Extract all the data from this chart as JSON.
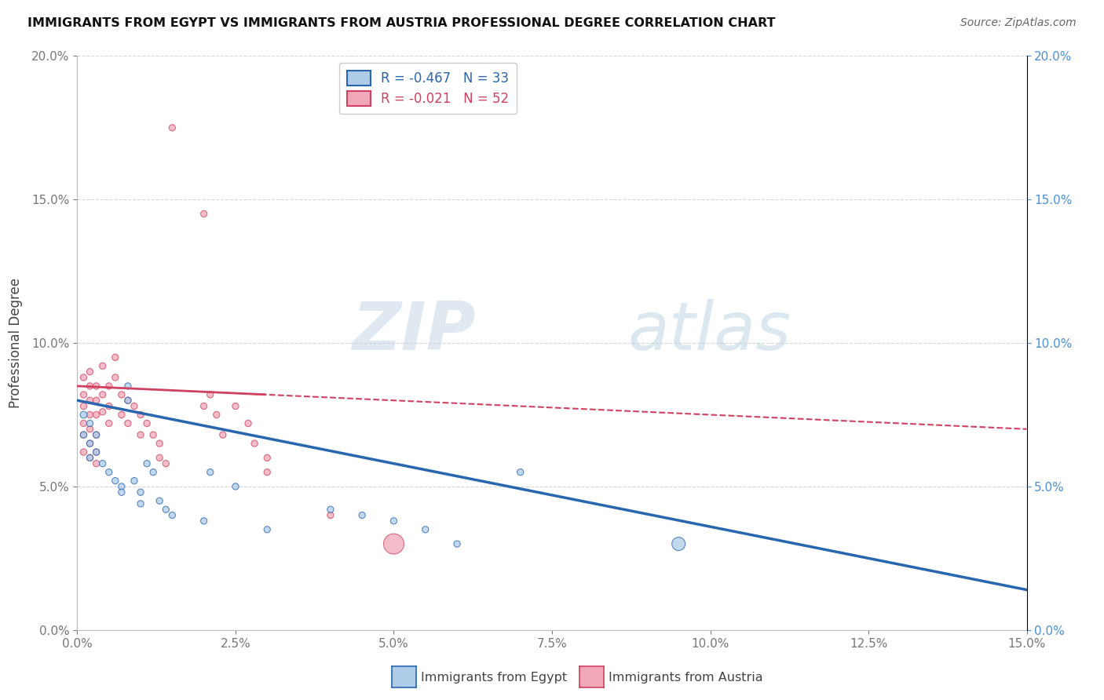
{
  "title": "IMMIGRANTS FROM EGYPT VS IMMIGRANTS FROM AUSTRIA PROFESSIONAL DEGREE CORRELATION CHART",
  "source": "Source: ZipAtlas.com",
  "ylabel": "Professional Degree",
  "xmin": 0.0,
  "xmax": 0.15,
  "ymin": 0.0,
  "ymax": 0.2,
  "egypt_R": -0.467,
  "egypt_N": 33,
  "austria_R": -0.021,
  "austria_N": 52,
  "egypt_color": "#aecce8",
  "austria_color": "#f0a8b8",
  "egypt_line_color": "#2866b0",
  "austria_line_color": "#d04060",
  "egypt_points": [
    [
      0.001,
      0.075
    ],
    [
      0.001,
      0.068
    ],
    [
      0.002,
      0.072
    ],
    [
      0.002,
      0.065
    ],
    [
      0.002,
      0.06
    ],
    [
      0.003,
      0.068
    ],
    [
      0.003,
      0.062
    ],
    [
      0.004,
      0.058
    ],
    [
      0.005,
      0.055
    ],
    [
      0.006,
      0.052
    ],
    [
      0.007,
      0.05
    ],
    [
      0.007,
      0.048
    ],
    [
      0.008,
      0.085
    ],
    [
      0.008,
      0.08
    ],
    [
      0.009,
      0.052
    ],
    [
      0.01,
      0.048
    ],
    [
      0.01,
      0.044
    ],
    [
      0.011,
      0.058
    ],
    [
      0.012,
      0.055
    ],
    [
      0.013,
      0.045
    ],
    [
      0.014,
      0.042
    ],
    [
      0.015,
      0.04
    ],
    [
      0.02,
      0.038
    ],
    [
      0.021,
      0.055
    ],
    [
      0.025,
      0.05
    ],
    [
      0.03,
      0.035
    ],
    [
      0.04,
      0.042
    ],
    [
      0.045,
      0.04
    ],
    [
      0.05,
      0.038
    ],
    [
      0.055,
      0.035
    ],
    [
      0.06,
      0.03
    ],
    [
      0.07,
      0.055
    ],
    [
      0.095,
      0.03
    ]
  ],
  "egypt_sizes": [
    40,
    35,
    35,
    35,
    35,
    35,
    35,
    35,
    35,
    35,
    35,
    35,
    35,
    35,
    35,
    35,
    35,
    35,
    35,
    35,
    35,
    35,
    35,
    35,
    35,
    35,
    35,
    35,
    35,
    35,
    35,
    35,
    150
  ],
  "austria_points": [
    [
      0.001,
      0.088
    ],
    [
      0.001,
      0.082
    ],
    [
      0.001,
      0.078
    ],
    [
      0.001,
      0.072
    ],
    [
      0.001,
      0.068
    ],
    [
      0.001,
      0.062
    ],
    [
      0.002,
      0.09
    ],
    [
      0.002,
      0.085
    ],
    [
      0.002,
      0.08
    ],
    [
      0.002,
      0.075
    ],
    [
      0.002,
      0.07
    ],
    [
      0.002,
      0.065
    ],
    [
      0.002,
      0.06
    ],
    [
      0.003,
      0.085
    ],
    [
      0.003,
      0.08
    ],
    [
      0.003,
      0.075
    ],
    [
      0.003,
      0.068
    ],
    [
      0.003,
      0.062
    ],
    [
      0.003,
      0.058
    ],
    [
      0.004,
      0.092
    ],
    [
      0.004,
      0.082
    ],
    [
      0.004,
      0.076
    ],
    [
      0.005,
      0.085
    ],
    [
      0.005,
      0.078
    ],
    [
      0.005,
      0.072
    ],
    [
      0.006,
      0.095
    ],
    [
      0.006,
      0.088
    ],
    [
      0.007,
      0.082
    ],
    [
      0.007,
      0.075
    ],
    [
      0.008,
      0.08
    ],
    [
      0.008,
      0.072
    ],
    [
      0.009,
      0.078
    ],
    [
      0.01,
      0.075
    ],
    [
      0.01,
      0.068
    ],
    [
      0.011,
      0.072
    ],
    [
      0.012,
      0.068
    ],
    [
      0.013,
      0.065
    ],
    [
      0.013,
      0.06
    ],
    [
      0.014,
      0.058
    ],
    [
      0.015,
      0.175
    ],
    [
      0.02,
      0.145
    ],
    [
      0.02,
      0.078
    ],
    [
      0.021,
      0.082
    ],
    [
      0.022,
      0.075
    ],
    [
      0.023,
      0.068
    ],
    [
      0.025,
      0.078
    ],
    [
      0.027,
      0.072
    ],
    [
      0.028,
      0.065
    ],
    [
      0.03,
      0.06
    ],
    [
      0.03,
      0.055
    ],
    [
      0.04,
      0.04
    ],
    [
      0.05,
      0.03
    ]
  ],
  "austria_sizes": [
    35,
    35,
    35,
    35,
    35,
    35,
    35,
    35,
    35,
    35,
    35,
    35,
    35,
    35,
    35,
    35,
    35,
    35,
    35,
    35,
    35,
    35,
    35,
    35,
    35,
    35,
    35,
    35,
    35,
    35,
    35,
    35,
    35,
    35,
    35,
    35,
    35,
    35,
    35,
    35,
    35,
    35,
    35,
    35,
    35,
    35,
    35,
    35,
    35,
    35,
    35,
    350
  ],
  "watermark_zip": "ZIP",
  "watermark_atlas": "atlas",
  "ytick_values": [
    0.0,
    0.05,
    0.1,
    0.15,
    0.2
  ],
  "xtick_values": [
    0.0,
    0.025,
    0.05,
    0.075,
    0.1,
    0.125,
    0.15
  ],
  "legend_entries": [
    {
      "label": "R = -0.467   N = 33",
      "color": "#aecce8",
      "edge": "#2866b0",
      "tcolor": "#2866b0"
    },
    {
      "label": "R = -0.021   N = 52",
      "color": "#f0a8b8",
      "edge": "#d04060",
      "tcolor": "#d04060"
    }
  ],
  "bottom_legend": [
    {
      "label": "Immigrants from Egypt",
      "color": "#aecce8",
      "edge": "#2866b0"
    },
    {
      "label": "Immigrants from Austria",
      "color": "#f0a8b8",
      "edge": "#d04060"
    }
  ]
}
